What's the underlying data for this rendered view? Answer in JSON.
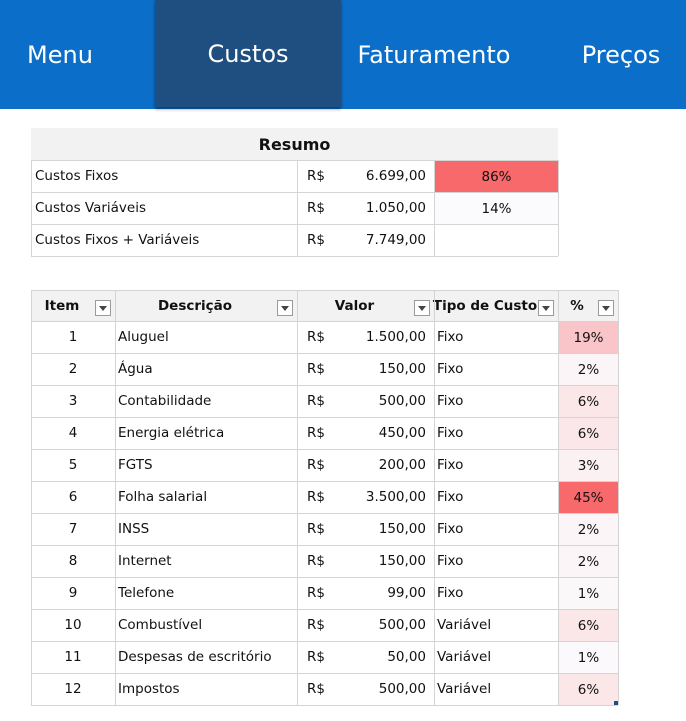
{
  "nav": {
    "items": [
      {
        "label": "Menu",
        "active": false
      },
      {
        "label": "Custos",
        "active": true
      },
      {
        "label": "Faturamento",
        "active": false
      },
      {
        "label": "Preços",
        "active": false
      }
    ],
    "bg_color": "#0b6ec9",
    "active_color": "#1f4f80"
  },
  "resumo": {
    "title": "Resumo",
    "rows": [
      {
        "label": "Custos Fixos",
        "currency": "R$",
        "value": "6.699,00",
        "pct": "86%",
        "pct_color": "#f8696b"
      },
      {
        "label": "Custos Variáveis",
        "currency": "R$",
        "value": "1.050,00",
        "pct": "14%",
        "pct_color": "#fbfbfd"
      },
      {
        "label": "Custos Fixos + Variáveis",
        "currency": "R$",
        "value": "7.749,00",
        "pct": "",
        "pct_color": "#ffffff"
      }
    ]
  },
  "custos": {
    "headers": {
      "item": "Item",
      "descricao": "Descrição",
      "valor": "Valor",
      "tipo": "Tipo de Custo",
      "pct": "%"
    },
    "rows": [
      {
        "item": "1",
        "descricao": "Aluguel",
        "currency": "R$",
        "valor": "1.500,00",
        "tipo": "Fixo",
        "pct": "19%",
        "color": "#fac5c8"
      },
      {
        "item": "2",
        "descricao": "Água",
        "currency": "R$",
        "valor": "150,00",
        "tipo": "Fixo",
        "pct": "2%",
        "color": "#fbf5f7"
      },
      {
        "item": "3",
        "descricao": "Contabilidade",
        "currency": "R$",
        "valor": "500,00",
        "tipo": "Fixo",
        "pct": "6%",
        "color": "#fbe6e8"
      },
      {
        "item": "4",
        "descricao": "Energia elétrica",
        "currency": "R$",
        "valor": "450,00",
        "tipo": "Fixo",
        "pct": "6%",
        "color": "#fbe7e9"
      },
      {
        "item": "5",
        "descricao": "FGTS",
        "currency": "R$",
        "valor": "200,00",
        "tipo": "Fixo",
        "pct": "3%",
        "color": "#fbf1f3"
      },
      {
        "item": "6",
        "descricao": "Folha salarial",
        "currency": "R$",
        "valor": "3.500,00",
        "tipo": "Fixo",
        "pct": "45%",
        "color": "#f8696b"
      },
      {
        "item": "7",
        "descricao": "INSS",
        "currency": "R$",
        "valor": "150,00",
        "tipo": "Fixo",
        "pct": "2%",
        "color": "#fbf5f7"
      },
      {
        "item": "8",
        "descricao": "Internet",
        "currency": "R$",
        "valor": "150,00",
        "tipo": "Fixo",
        "pct": "2%",
        "color": "#fbf5f7"
      },
      {
        "item": "9",
        "descricao": "Telefone",
        "currency": "R$",
        "valor": "99,00",
        "tipo": "Fixo",
        "pct": "1%",
        "color": "#fbf8fa"
      },
      {
        "item": "10",
        "descricao": "Combustível",
        "currency": "R$",
        "valor": "500,00",
        "tipo": "Variável",
        "pct": "6%",
        "color": "#fbe6e8"
      },
      {
        "item": "11",
        "descricao": "Despesas de escritório",
        "currency": "R$",
        "valor": "50,00",
        "tipo": "Variável",
        "pct": "1%",
        "color": "#fbf9fb"
      },
      {
        "item": "12",
        "descricao": "Impostos",
        "currency": "R$",
        "valor": "500,00",
        "tipo": "Variável",
        "pct": "6%",
        "color": "#fbe6e8"
      }
    ]
  },
  "icons": {
    "filter": "dropdown-arrow-icon"
  }
}
